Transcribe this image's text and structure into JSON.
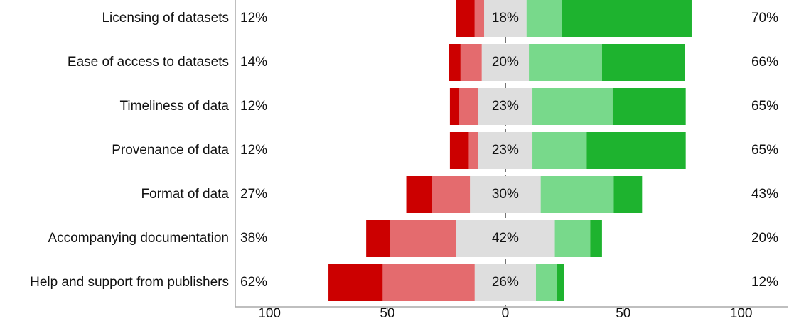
{
  "chart_data": {
    "type": "diverging_bar",
    "categories": [
      "Licensing of datasets",
      "Ease of access to datasets",
      "Timeliness of data",
      "Provenance of data",
      "Format of data",
      "Accompanying documentation",
      "Help and support from publishers"
    ],
    "series": [
      {
        "color": "#cc0000",
        "side": "negative",
        "values": [
          8,
          5,
          4,
          8,
          11,
          10,
          23
        ]
      },
      {
        "color": "#e46b6e",
        "side": "negative",
        "values": [
          4,
          9,
          8,
          4,
          16,
          28,
          39
        ]
      },
      {
        "color": "#dedede",
        "side": "neutral",
        "values": [
          18,
          20,
          23,
          23,
          30,
          42,
          26
        ],
        "value_labels": [
          "18%",
          "20%",
          "23%",
          "23%",
          "30%",
          "42%",
          "26%"
        ]
      },
      {
        "color": "#78d98b",
        "side": "positive",
        "values": [
          15,
          31,
          34,
          23,
          31,
          15,
          9
        ]
      },
      {
        "color": "#1eb32f",
        "side": "positive",
        "values": [
          55,
          35,
          31,
          42,
          12,
          5,
          3
        ]
      }
    ],
    "left_values": [
      12,
      14,
      12,
      12,
      27,
      38,
      62
    ],
    "left_labels": [
      "12%",
      "14%",
      "12%",
      "12%",
      "27%",
      "38%",
      "62%"
    ],
    "right_values": [
      70,
      66,
      65,
      65,
      43,
      20,
      12
    ],
    "right_labels": [
      "70%",
      "66%",
      "65%",
      "65%",
      "43%",
      "20%",
      "12%"
    ],
    "xlim": [
      -114.5,
      120
    ],
    "xticks": [
      {
        "value": -100,
        "label": "100"
      },
      {
        "value": -50,
        "label": "50"
      },
      0,
      50,
      {
        "value": 100,
        "label": "100"
      }
    ]
  }
}
